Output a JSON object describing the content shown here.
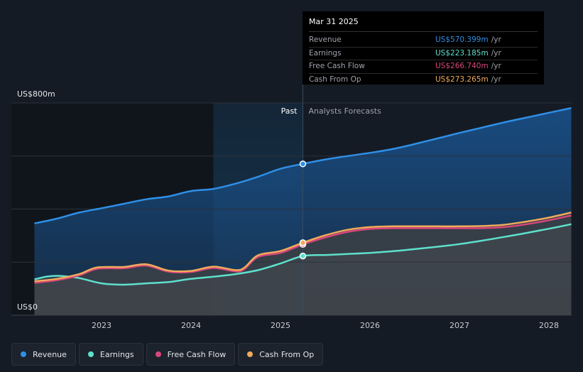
{
  "chart_data": {
    "type": "area",
    "y_axis": {
      "top_label": "US$800m",
      "bottom_label": "US$0",
      "ylim": [
        0,
        800
      ],
      "unit": "US$m"
    },
    "x_axis": {
      "ticks": [
        "2023",
        "2024",
        "2025",
        "2026",
        "2027",
        "2028"
      ]
    },
    "regions": {
      "past_label": "Past",
      "forecast_label": "Analysts Forecasts"
    },
    "divider_x": 2025.25,
    "series": [
      {
        "name": "Revenue",
        "color": "#2f8fe6",
        "points": [
          [
            2022.25,
            346
          ],
          [
            2022.5,
            364
          ],
          [
            2022.75,
            387
          ],
          [
            2023.0,
            403
          ],
          [
            2023.25,
            420
          ],
          [
            2023.5,
            437
          ],
          [
            2023.75,
            448
          ],
          [
            2024.0,
            468
          ],
          [
            2024.25,
            476
          ],
          [
            2024.5,
            496
          ],
          [
            2024.75,
            522
          ],
          [
            2025.0,
            552
          ],
          [
            2025.25,
            570.399
          ],
          [
            2025.5,
            587
          ],
          [
            2025.75,
            600
          ],
          [
            2026.0,
            612
          ],
          [
            2026.25,
            626
          ],
          [
            2026.5,
            645
          ],
          [
            2026.75,
            666
          ],
          [
            2027.0,
            687
          ],
          [
            2027.25,
            707
          ],
          [
            2027.5,
            727
          ],
          [
            2027.75,
            745
          ],
          [
            2028.0,
            763
          ],
          [
            2028.25,
            781
          ]
        ]
      },
      {
        "name": "Earnings",
        "color": "#5ee0cc",
        "points": [
          [
            2022.25,
            135
          ],
          [
            2022.4,
            146
          ],
          [
            2022.55,
            148
          ],
          [
            2022.75,
            140
          ],
          [
            2023.0,
            120
          ],
          [
            2023.25,
            115
          ],
          [
            2023.5,
            120
          ],
          [
            2023.75,
            125
          ],
          [
            2024.0,
            137
          ],
          [
            2024.25,
            145
          ],
          [
            2024.5,
            155
          ],
          [
            2024.75,
            170
          ],
          [
            2025.0,
            195
          ],
          [
            2025.25,
            223.185
          ],
          [
            2025.5,
            227
          ],
          [
            2025.75,
            231
          ],
          [
            2026.0,
            235
          ],
          [
            2026.25,
            241
          ],
          [
            2026.5,
            249
          ],
          [
            2026.75,
            258
          ],
          [
            2027.0,
            268
          ],
          [
            2027.25,
            281
          ],
          [
            2027.5,
            295
          ],
          [
            2027.75,
            310
          ],
          [
            2028.0,
            326
          ],
          [
            2028.25,
            343
          ]
        ]
      },
      {
        "name": "Free Cash Flow",
        "color": "#d9467c",
        "points": [
          [
            2022.25,
            122
          ],
          [
            2022.5,
            132
          ],
          [
            2022.75,
            150
          ],
          [
            2022.95,
            175
          ],
          [
            2023.25,
            177
          ],
          [
            2023.5,
            187
          ],
          [
            2023.75,
            164
          ],
          [
            2024.0,
            163
          ],
          [
            2024.25,
            178
          ],
          [
            2024.5,
            165
          ],
          [
            2024.6,
            175
          ],
          [
            2024.75,
            220
          ],
          [
            2025.0,
            235
          ],
          [
            2025.25,
            266.74
          ],
          [
            2025.5,
            293
          ],
          [
            2025.75,
            314
          ],
          [
            2026.0,
            325
          ],
          [
            2026.25,
            328
          ],
          [
            2026.5,
            328
          ],
          [
            2026.75,
            328
          ],
          [
            2027.0,
            328
          ],
          [
            2027.25,
            328
          ],
          [
            2027.5,
            332
          ],
          [
            2027.75,
            343
          ],
          [
            2028.0,
            358
          ],
          [
            2028.25,
            376
          ]
        ]
      },
      {
        "name": "Cash From Op",
        "color": "#f0ab5b",
        "points": [
          [
            2022.25,
            128
          ],
          [
            2022.5,
            137
          ],
          [
            2022.75,
            155
          ],
          [
            2022.95,
            180
          ],
          [
            2023.25,
            182
          ],
          [
            2023.5,
            192
          ],
          [
            2023.75,
            168
          ],
          [
            2024.0,
            167
          ],
          [
            2024.25,
            183
          ],
          [
            2024.5,
            170
          ],
          [
            2024.6,
            180
          ],
          [
            2024.75,
            226
          ],
          [
            2025.0,
            242
          ],
          [
            2025.25,
            273.265
          ],
          [
            2025.5,
            301
          ],
          [
            2025.75,
            322
          ],
          [
            2026.0,
            332
          ],
          [
            2026.25,
            335
          ],
          [
            2026.5,
            335
          ],
          [
            2026.75,
            335
          ],
          [
            2027.0,
            335
          ],
          [
            2027.25,
            336
          ],
          [
            2027.5,
            341
          ],
          [
            2027.75,
            353
          ],
          [
            2028.0,
            368
          ],
          [
            2028.25,
            387
          ]
        ]
      }
    ],
    "tooltip": {
      "date": "Mar 31 2025",
      "rows": [
        {
          "label": "Revenue",
          "value": "US$570.399m",
          "unit": "/yr",
          "color": "#2f8fe6"
        },
        {
          "label": "Earnings",
          "value": "US$223.185m",
          "unit": "/yr",
          "color": "#5ee0cc"
        },
        {
          "label": "Free Cash Flow",
          "value": "US$266.740m",
          "unit": "/yr",
          "color": "#d9467c"
        },
        {
          "label": "Cash From Op",
          "value": "US$273.265m",
          "unit": "/yr",
          "color": "#f0ab5b"
        }
      ]
    },
    "grid": true,
    "legend": {
      "placement": "bottom-left"
    }
  },
  "legend_items": [
    {
      "label": "Revenue",
      "color": "#2f8fe6"
    },
    {
      "label": "Earnings",
      "color": "#5ee0cc"
    },
    {
      "label": "Free Cash Flow",
      "color": "#d9467c"
    },
    {
      "label": "Cash From Op",
      "color": "#f0ab5b"
    }
  ]
}
